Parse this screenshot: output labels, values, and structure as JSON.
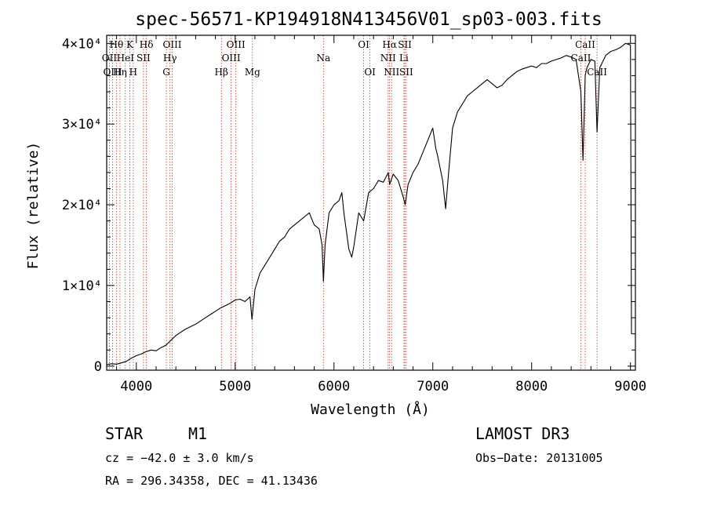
{
  "chart_data": {
    "type": "line",
    "title": "spec-56571-KP194918N413456V01_sp03-003.fits",
    "xlabel": "Wavelength (Å)",
    "ylabel": "Flux (relative)",
    "xlim": [
      3700,
      9050
    ],
    "ylim": [
      -500,
      41000
    ],
    "xticks": [
      4000,
      5000,
      6000,
      7000,
      8000,
      9000
    ],
    "xtick_labels": [
      "4000",
      "5000",
      "6000",
      "7000",
      "8000",
      "9000"
    ],
    "yticks": [
      0,
      10000,
      20000,
      30000,
      40000
    ],
    "ytick_labels": [
      "0",
      "1×10⁴",
      "2×10⁴",
      "3×10⁴",
      "4×10⁴"
    ],
    "series": [
      {
        "name": "flux",
        "x": [
          3700,
          3750,
          3800,
          3850,
          3900,
          3950,
          4000,
          4050,
          4100,
          4150,
          4200,
          4250,
          4300,
          4350,
          4400,
          4450,
          4500,
          4550,
          4600,
          4650,
          4700,
          4750,
          4800,
          4850,
          4900,
          4950,
          5000,
          5050,
          5100,
          5150,
          5170,
          5200,
          5250,
          5300,
          5350,
          5400,
          5450,
          5500,
          5550,
          5600,
          5650,
          5700,
          5750,
          5800,
          5850,
          5880,
          5893,
          5910,
          5950,
          6000,
          6050,
          6080,
          6100,
          6150,
          6180,
          6200,
          6250,
          6300,
          6350,
          6400,
          6450,
          6500,
          6550,
          6563,
          6600,
          6650,
          6700,
          6720,
          6750,
          6800,
          6850,
          6900,
          6950,
          7000,
          7030,
          7050,
          7100,
          7130,
          7160,
          7200,
          7250,
          7300,
          7350,
          7400,
          7450,
          7500,
          7550,
          7600,
          7650,
          7700,
          7750,
          7800,
          7850,
          7900,
          7950,
          8000,
          8050,
          8100,
          8150,
          8200,
          8250,
          8300,
          8350,
          8400,
          8450,
          8498,
          8520,
          8542,
          8560,
          8600,
          8640,
          8662,
          8690,
          8750,
          8800,
          8850,
          8900,
          8950,
          9000,
          9010
        ],
        "values": [
          200,
          300,
          250,
          400,
          600,
          1000,
          1300,
          1500,
          1800,
          2000,
          1900,
          2300,
          2600,
          3200,
          3800,
          4200,
          4600,
          4900,
          5200,
          5600,
          6000,
          6400,
          6800,
          7200,
          7500,
          7800,
          8200,
          8300,
          8000,
          8600,
          5800,
          9500,
          11500,
          12500,
          13500,
          14500,
          15500,
          16000,
          17000,
          17500,
          18000,
          18500,
          19000,
          17500,
          17000,
          15000,
          10500,
          15000,
          19000,
          20000,
          20500,
          21500,
          19000,
          14500,
          13500,
          14800,
          19000,
          18000,
          21500,
          22000,
          23000,
          22800,
          24000,
          22500,
          23800,
          23000,
          21000,
          20000,
          22500,
          24000,
          25000,
          26500,
          28000,
          29500,
          27000,
          26000,
          23000,
          19500,
          24000,
          29500,
          31500,
          32500,
          33500,
          34000,
          34500,
          35000,
          35500,
          35000,
          34500,
          34800,
          35500,
          36000,
          36500,
          36800,
          37000,
          37200,
          37000,
          37500,
          37500,
          37800,
          38000,
          38200,
          38500,
          38300,
          38000,
          34000,
          25500,
          36000,
          37000,
          38000,
          37800,
          29000,
          37000,
          38500,
          39000,
          39200,
          39500,
          40000,
          39800,
          4000
        ]
      }
    ],
    "lines": [
      {
        "label": "Hθ",
        "wl": 3798,
        "row": 0
      },
      {
        "label": "K",
        "wl": 3934,
        "row": 0
      },
      {
        "label": "Hδ",
        "wl": 4102,
        "row": 0
      },
      {
        "label": "OII",
        "wl": 3727,
        "row": 1
      },
      {
        "label": "HeI",
        "wl": 3889,
        "row": 1
      },
      {
        "label": "SII",
        "wl": 4072,
        "row": 1
      },
      {
        "label": "OIII",
        "wl": 3760,
        "row": 2
      },
      {
        "label": "Hη",
        "wl": 3835,
        "row": 2
      },
      {
        "label": "H",
        "wl": 3969,
        "row": 2
      },
      {
        "label": "OIII",
        "wl": 4363,
        "row": 0
      },
      {
        "label": "Hγ",
        "wl": 4341,
        "row": 1
      },
      {
        "label": "G",
        "wl": 4304,
        "row": 2
      },
      {
        "label": "OIII",
        "wl": 5007,
        "row": 0
      },
      {
        "label": "OIII",
        "wl": 4959,
        "row": 1
      },
      {
        "label": "Hβ",
        "wl": 4861,
        "row": 2
      },
      {
        "label": "Mg",
        "wl": 5175,
        "row": 2
      },
      {
        "label": "Na",
        "wl": 5893,
        "row": 1
      },
      {
        "label": "OI",
        "wl": 6300,
        "row": 0
      },
      {
        "label": "OI",
        "wl": 6364,
        "row": 2
      },
      {
        "label": "Hα",
        "wl": 6563,
        "row": 0
      },
      {
        "label": "SII",
        "wl": 6717,
        "row": 0
      },
      {
        "label": "NII",
        "wl": 6548,
        "row": 1
      },
      {
        "label": "Li",
        "wl": 6708,
        "row": 1
      },
      {
        "label": "NII",
        "wl": 6583,
        "row": 2
      },
      {
        "label": "SII",
        "wl": 6731,
        "row": 2
      },
      {
        "label": "CaII",
        "wl": 8542,
        "row": 0
      },
      {
        "label": "CaII",
        "wl": 8498,
        "row": 1
      },
      {
        "label": "CaII",
        "wl": 8662,
        "row": 2
      }
    ]
  },
  "annotations": {
    "class": "STAR",
    "subclass": "M1",
    "survey": "LAMOST DR3",
    "cz": "cz = −42.0 ± 3.0 km/s",
    "obs_date": "Obs−Date: 20131005",
    "coords": "RA = 296.34358, DEC =  41.13436"
  },
  "colors": {
    "line_marker": "#c0392b",
    "spectrum": "#000000",
    "axes": "#000000"
  }
}
